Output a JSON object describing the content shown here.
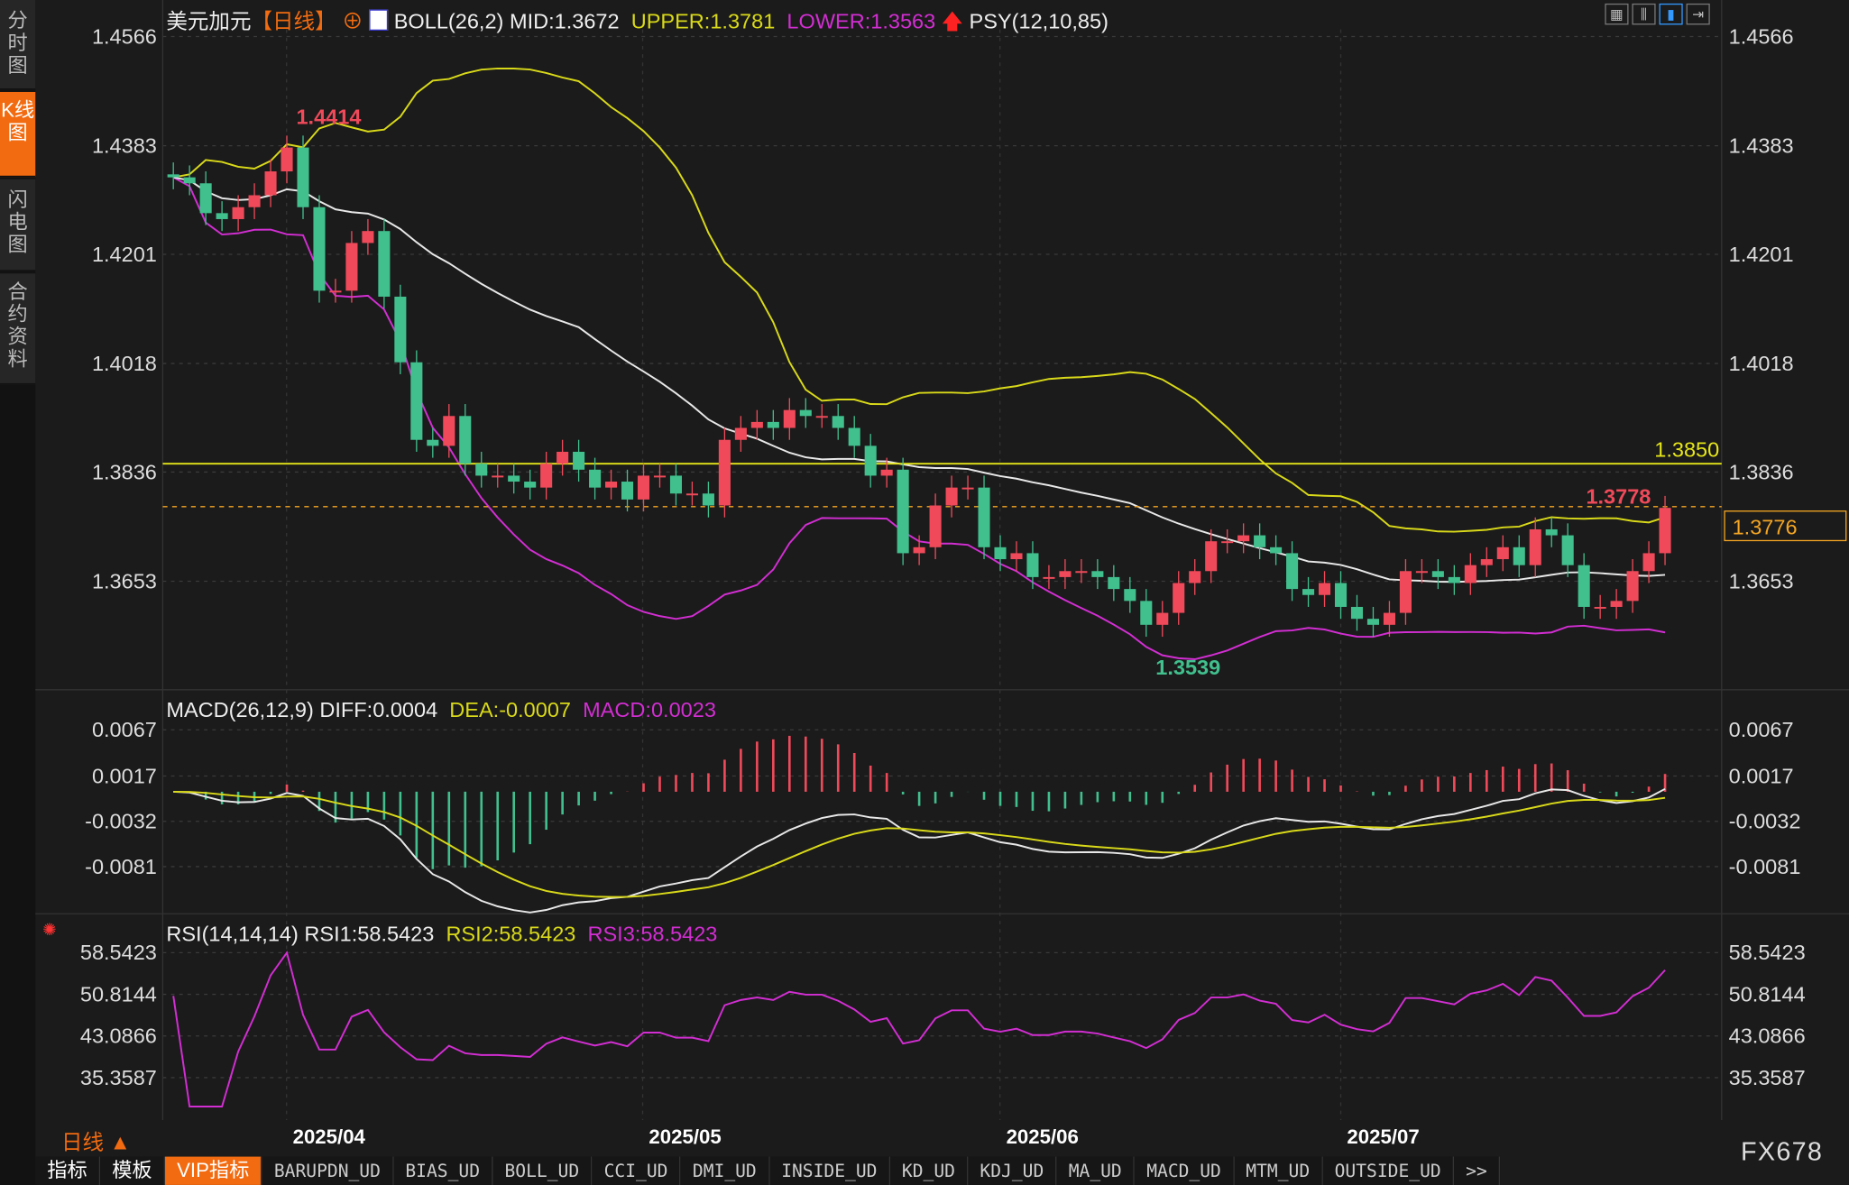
{
  "sidebar": {
    "items": [
      {
        "label": "分时图"
      },
      {
        "label": "K线图",
        "active": true
      },
      {
        "label": "闪电图"
      },
      {
        "label": "合约资料"
      }
    ]
  },
  "header": {
    "symbol": "美元加元",
    "period": "【日线】",
    "boll": "BOLL(26,2)",
    "mid": "MID:1.3672",
    "upper": "UPPER:1.3781",
    "lower": "LOWER:1.3563",
    "psy": "PSY(12,10,85)"
  },
  "toolbar_icons": [
    "grid-icon",
    "chart-icon",
    "candle-icon",
    "export-icon"
  ],
  "current_price": "1.3776",
  "colors": {
    "up": "#f04a5a",
    "down": "#41c08e",
    "mid": "#e8e8e8",
    "upper": "#d9d91a",
    "lower": "#d22ed2",
    "accent": "#f26b10",
    "bg": "#1b1b1b"
  },
  "macd_header": {
    "title": "MACD(26,12,9)",
    "diff": "DIFF:0.0004",
    "dea": "DEA:-0.0007",
    "macd": "MACD:0.0023"
  },
  "rsi_header": {
    "title": "RSI(14,14,14)",
    "rsi1": "RSI1:58.5423",
    "rsi2": "RSI2:58.5423",
    "rsi3": "RSI3:58.5423"
  },
  "period_label": "日线 ▲",
  "brand": "FX678",
  "bottom_tabs": [
    "指标",
    "模板",
    "VIP指标",
    "BARUPDN_UD",
    "BIAS_UD",
    "BOLL_UD",
    "CCI_UD",
    "DMI_UD",
    "INSIDE_UD",
    "KD_UD",
    "KDJ_UD",
    "MA_UD",
    "MACD_UD",
    "MTM_UD",
    "OUTSIDE_UD",
    ">>"
  ],
  "chart_data": {
    "type": "candlestick",
    "x_tick_labels": [
      "2025/04",
      "2025/05",
      "2025/06",
      "2025/07"
    ],
    "price_axis": {
      "ticks": [
        1.4566,
        1.4383,
        1.4201,
        1.4018,
        1.3836,
        1.3653
      ],
      "range": [
        1.348,
        1.462
      ]
    },
    "macd_axis": {
      "ticks": [
        0.0067,
        0.0017,
        -0.0032,
        -0.0081
      ],
      "range": [
        -0.0112,
        0.0098
      ]
    },
    "rsi_axis": {
      "ticks": [
        58.5423,
        50.8144,
        43.0866,
        35.3587
      ],
      "range": [
        28,
        61
      ]
    },
    "annotations": {
      "high": "1.4414",
      "low": "1.3539",
      "last_high": "1.3778",
      "hline": "1.3850"
    },
    "hline_value": 1.385,
    "last_price_line": 1.3778,
    "open0": 1.4335,
    "closes": [
      1.433,
      1.432,
      1.427,
      1.426,
      1.428,
      1.43,
      1.434,
      1.438,
      1.428,
      1.414,
      1.414,
      1.422,
      1.424,
      1.413,
      1.402,
      1.389,
      1.388,
      1.393,
      1.385,
      1.383,
      1.383,
      1.382,
      1.381,
      1.385,
      1.387,
      1.384,
      1.381,
      1.382,
      1.379,
      1.383,
      1.383,
      1.38,
      1.38,
      1.378,
      1.389,
      1.391,
      1.392,
      1.391,
      1.394,
      1.393,
      1.393,
      1.391,
      1.388,
      1.383,
      1.384,
      1.37,
      1.371,
      1.378,
      1.381,
      1.381,
      1.371,
      1.369,
      1.37,
      1.366,
      1.366,
      1.367,
      1.367,
      1.366,
      1.364,
      1.362,
      1.358,
      1.36,
      1.365,
      1.367,
      1.372,
      1.372,
      1.373,
      1.371,
      1.37,
      1.364,
      1.363,
      1.365,
      1.361,
      1.359,
      1.358,
      1.36,
      1.367,
      1.367,
      1.366,
      1.365,
      1.368,
      1.369,
      1.371,
      1.368,
      1.374,
      1.373,
      1.368,
      1.361,
      1.361,
      1.362,
      1.367,
      1.37,
      1.3776
    ]
  }
}
